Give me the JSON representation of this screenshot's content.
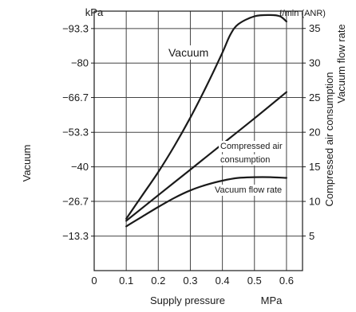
{
  "chart_data": {
    "type": "line",
    "title": "",
    "x": {
      "label": "Supply pressure",
      "unit": "MPa",
      "range": [
        0,
        0.65
      ],
      "ticks": [
        0,
        0.1,
        0.2,
        0.3,
        0.4,
        0.5,
        0.6
      ],
      "tick_labels": [
        "0",
        "0.1",
        "0.2",
        "0.3",
        "0.4",
        "0.5",
        "0.6"
      ]
    },
    "y_left": {
      "label": "Vacuum",
      "unit": "kPa",
      "range": [
        0,
        100
      ],
      "ticks": [
        13.3,
        26.7,
        40,
        53.3,
        66.7,
        80,
        93.3
      ],
      "tick_labels": [
        "−13.3",
        "−26.7",
        "−40",
        "−53.3",
        "−66.7",
        "−80",
        "−93.3"
      ]
    },
    "y_right": {
      "label_lines": [
        "Compressed air consumption",
        "Vacuum flow rate"
      ],
      "unit": "ℓ/min (ANR)",
      "range": [
        0,
        37.5
      ],
      "ticks": [
        5,
        10,
        15,
        20,
        25,
        30,
        35
      ],
      "tick_labels": [
        "5",
        "10",
        "15",
        "20",
        "25",
        "30",
        "35"
      ]
    },
    "grid": true,
    "series": [
      {
        "name": "Vacuum",
        "axis": "left",
        "x": [
          0.1,
          0.15,
          0.2,
          0.25,
          0.3,
          0.35,
          0.4,
          0.425,
          0.45,
          0.5,
          0.55,
          0.58,
          0.6
        ],
        "y": [
          20,
          29,
          38,
          48,
          59,
          71,
          84,
          91,
          95,
          98,
          98.5,
          98,
          96
        ]
      },
      {
        "name": "Compressed air consumption",
        "axis": "right",
        "x": [
          0.1,
          0.2,
          0.3,
          0.4,
          0.5,
          0.6
        ],
        "y": [
          7.2,
          10.9,
          14.6,
          18.3,
          22.0,
          25.8
        ]
      },
      {
        "name": "Vacuum flow rate",
        "axis": "right",
        "x": [
          0.1,
          0.15,
          0.2,
          0.25,
          0.3,
          0.35,
          0.4,
          0.45,
          0.5,
          0.55,
          0.6
        ],
        "y": [
          6.4,
          7.8,
          9.2,
          10.5,
          11.6,
          12.4,
          13.0,
          13.4,
          13.5,
          13.5,
          13.4
        ]
      }
    ],
    "annotations": [
      {
        "text": "Vacuum",
        "series": "Vacuum"
      },
      {
        "text": "Compressed air",
        "series": "Compressed air consumption"
      },
      {
        "text": "consumption",
        "series": "Compressed air consumption"
      },
      {
        "text": "Vacuum flow rate",
        "series": "Vacuum flow rate"
      }
    ],
    "colors": {
      "line": "#1a1a1a",
      "grid": "#444444",
      "text": "#1a1a1a"
    }
  }
}
